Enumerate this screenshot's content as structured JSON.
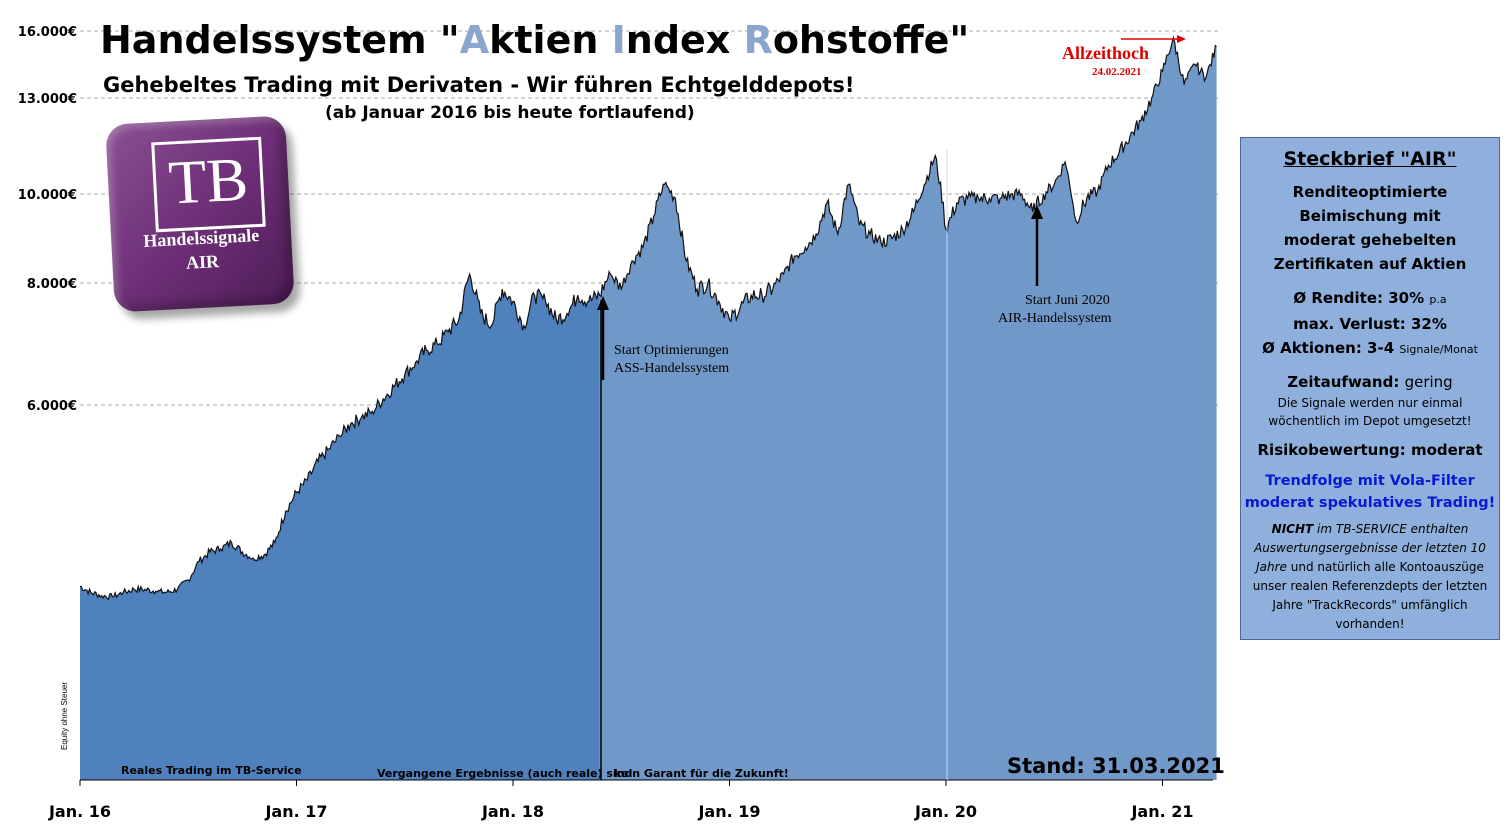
{
  "title_parts": [
    "Handelssystem \"",
    "A",
    "ktien ",
    "I",
    "ndex ",
    "R",
    "ohstoffe\""
  ],
  "subtitle": "Gehebeltes Trading mit Derivaten - Wir führen Echtgelddepots!",
  "subtitle2": "(ab Januar 2016 bis heute fortlaufend)",
  "logo": {
    "mark": "TB",
    "line1": "Handelssignale",
    "line2": "AIR"
  },
  "panel": {
    "heading": "Steckbrief \"AIR\"",
    "desc": [
      "Renditeoptimierte",
      "Beimischung mit",
      "moderat gehebelten",
      "Zertifikaten auf Aktien"
    ],
    "rendite_label": "Ø Rendite: 30%",
    "rendite_unit": "p.a",
    "verlust": "max. Verlust: 32%",
    "aktionen_label": "Ø Aktionen: 3-4",
    "aktionen_unit": "Signale/Monat",
    "zeit_label": "Zeitaufwand:",
    "zeit_value": "gering",
    "zeit_note": [
      "Die Signale werden nur einmal",
      "wöchentlich im Depot umgesetzt!"
    ],
    "risiko": "Risikobewertung: moderat",
    "trend": [
      "Trendfolge mit Vola-Filter",
      "moderat spekulatives Trading!"
    ],
    "nicht_bold": "NICHT",
    "nicht_rest": "im TB-SERVICE enthalten Auswertungsergebnisse der letzten 10 Jahre",
    "nicht_tail": "und natürlich alle Kontoauszüge unser realen Referenzdepts der letzten Jahre \"TrackRecords\" umfänglich vorhanden!"
  },
  "annotations": {
    "opt1": "Start Optimierungen",
    "opt2": "ASS-Handelssystem",
    "air1": "Start Juni 2020",
    "air2": "AIR-Handelssystem",
    "ath": "Allzeithoch",
    "ath_date": "24.02.2021"
  },
  "footer": {
    "left": "Reales Trading im TB-Service",
    "mid": "Vergangene Ergebnisse (auch reale) sind",
    "right": "kein Garant für die Zukunft!",
    "stand": "Stand: 31.03.2021"
  },
  "y_axis_note": "Equity ohne Steuer",
  "colors": {
    "real": "#4f81bd",
    "backtest": "#7098c9",
    "grid": "#aaaaaa",
    "accent": "#8aa6cf",
    "ath": "#e00000",
    "panel": "#8fb0dc"
  },
  "chart_data": {
    "type": "area",
    "x_unit": "years (2016.0 = Jan. 16)",
    "xlim": [
      2016.0,
      2021.25
    ],
    "ylim": [
      0,
      16000
    ],
    "y_ticks": [
      16000,
      13000,
      10000,
      8000,
      6000
    ],
    "y_tick_labels": [
      "16.000€",
      "13.000€",
      "10.000€",
      "8.000€",
      "6.000€"
    ],
    "x_ticks": [
      2016,
      2017,
      2018,
      2019,
      2020,
      2021
    ],
    "x_tick_labels": [
      "Jan. 16",
      "Jan. 17",
      "Jan. 18",
      "Jan. 19",
      "Jan. 20",
      "Jan. 21"
    ],
    "segments": [
      "real trading until 2018.40",
      "backtest 2018.40–2020.00",
      "real trading from 2020.00"
    ],
    "x": [
      2016.0,
      2016.05,
      2016.1,
      2016.15,
      2016.2,
      2016.25,
      2016.3,
      2016.35,
      2016.4,
      2016.45,
      2016.5,
      2016.55,
      2016.6,
      2016.65,
      2016.7,
      2016.75,
      2016.8,
      2016.85,
      2016.9,
      2016.95,
      2017.0,
      2017.05,
      2017.1,
      2017.15,
      2017.2,
      2017.25,
      2017.3,
      2017.35,
      2017.4,
      2017.45,
      2017.5,
      2017.55,
      2017.6,
      2017.65,
      2017.7,
      2017.75,
      2017.8,
      2017.85,
      2017.9,
      2017.95,
      2018.0,
      2018.05,
      2018.1,
      2018.15,
      2018.2,
      2018.25,
      2018.3,
      2018.35,
      2018.4,
      2018.45,
      2018.5,
      2018.55,
      2018.6,
      2018.65,
      2018.7,
      2018.75,
      2018.8,
      2018.85,
      2018.9,
      2018.95,
      2019.0,
      2019.05,
      2019.1,
      2019.15,
      2019.2,
      2019.25,
      2019.3,
      2019.35,
      2019.4,
      2019.45,
      2019.5,
      2019.55,
      2019.6,
      2019.65,
      2019.7,
      2019.75,
      2019.8,
      2019.85,
      2019.9,
      2019.95,
      2020.0,
      2020.05,
      2020.1,
      2020.15,
      2020.2,
      2020.25,
      2020.3,
      2020.35,
      2020.4,
      2020.45,
      2020.5,
      2020.55,
      2020.6,
      2020.65,
      2020.7,
      2020.75,
      2020.8,
      2020.85,
      2020.9,
      2020.95,
      2021.0,
      2021.05,
      2021.1,
      2021.15,
      2021.2,
      2021.25
    ],
    "values": [
      3100,
      3000,
      2950,
      2930,
      3000,
      3050,
      3050,
      3020,
      3000,
      3050,
      3200,
      3500,
      3650,
      3700,
      3800,
      3650,
      3550,
      3600,
      3800,
      4300,
      4600,
      4800,
      5100,
      5300,
      5500,
      5700,
      5800,
      5900,
      6100,
      6300,
      6500,
      6700,
      6900,
      7000,
      7200,
      7400,
      8200,
      7500,
      7300,
      7900,
      7700,
      7300,
      7800,
      7700,
      7400,
      7500,
      7800,
      7700,
      7800,
      8200,
      7900,
      8500,
      8800,
      9500,
      10300,
      9900,
      8500,
      7900,
      8000,
      7700,
      7400,
      7600,
      7800,
      7800,
      7900,
      8200,
      8600,
      8800,
      9100,
      9800,
      9100,
      10300,
      9300,
      9100,
      8900,
      9000,
      9200,
      9600,
      10300,
      11200,
      9200,
      9800,
      9900,
      9900,
      9900,
      9900,
      10000,
      10000,
      9600,
      10000,
      10300,
      11000,
      9400,
      9900,
      10100,
      10900,
      11300,
      11800,
      12300,
      13000,
      14200,
      15700,
      13600,
      14500,
      13900,
      15300
    ]
  }
}
